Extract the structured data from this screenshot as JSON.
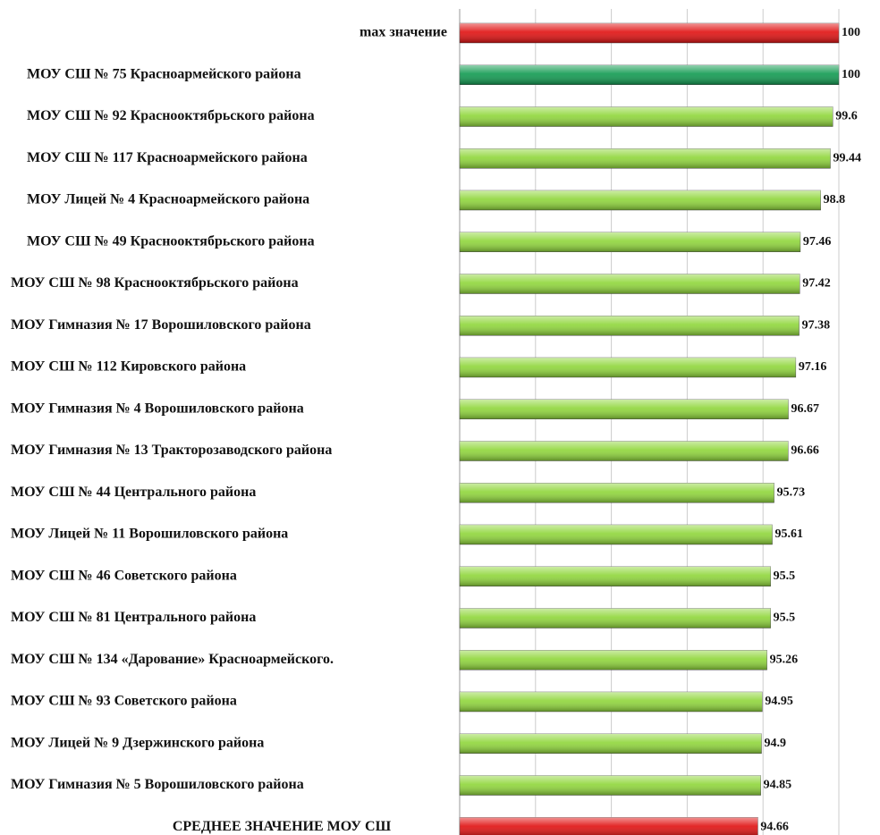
{
  "chart_data": {
    "type": "barh",
    "categories": [
      "max значение",
      "МОУ СШ № 75 Красноармейского района",
      "МОУ СШ № 92 Краснооктябрьского района",
      "МОУ СШ № 117 Красноармейского района",
      "МОУ Лицей № 4 Красноармейского района",
      "МОУ СШ № 49 Краснооктябрьского района",
      "МОУ СШ № 98 Краснооктябрьского района",
      "МОУ Гимназия № 17 Ворошиловского района",
      "МОУ СШ № 112 Кировского района",
      "МОУ Гимназия № 4 Ворошиловского района",
      "МОУ Гимназия № 13 Тракторозаводского района",
      "МОУ СШ № 44 Центрального района",
      "МОУ Лицей № 11 Ворошиловского района",
      "МОУ СШ № 46 Советского района",
      "МОУ СШ № 81 Центрального района",
      "МОУ СШ № 134 «Дарование» Красноармейского.",
      "МОУ СШ № 93 Советского района",
      "МОУ Лицей № 9 Дзержинского района",
      "МОУ Гимназия № 5 Ворошиловского района",
      "СРЕДНЕЕ ЗНАЧЕНИЕ МОУ СШ"
    ],
    "values": [
      100,
      100,
      99.6,
      99.44,
      98.8,
      97.46,
      97.42,
      97.38,
      97.16,
      96.67,
      96.66,
      95.73,
      95.61,
      95.5,
      95.5,
      95.26,
      94.95,
      94.9,
      94.85,
      94.66
    ],
    "colors": [
      "#e01010",
      "#109a50",
      "#8fd63a",
      "#8fd63a",
      "#8fd63a",
      "#8fd63a",
      "#8fd63a",
      "#8fd63a",
      "#8fd63a",
      "#8fd63a",
      "#8fd63a",
      "#8fd63a",
      "#8fd63a",
      "#8fd63a",
      "#8fd63a",
      "#8fd63a",
      "#8fd63a",
      "#8fd63a",
      "#8fd63a",
      "#e01010"
    ],
    "xlim": [
      75,
      100
    ],
    "xticks": [
      75,
      80,
      85,
      90,
      95,
      100
    ],
    "grid": true
  }
}
